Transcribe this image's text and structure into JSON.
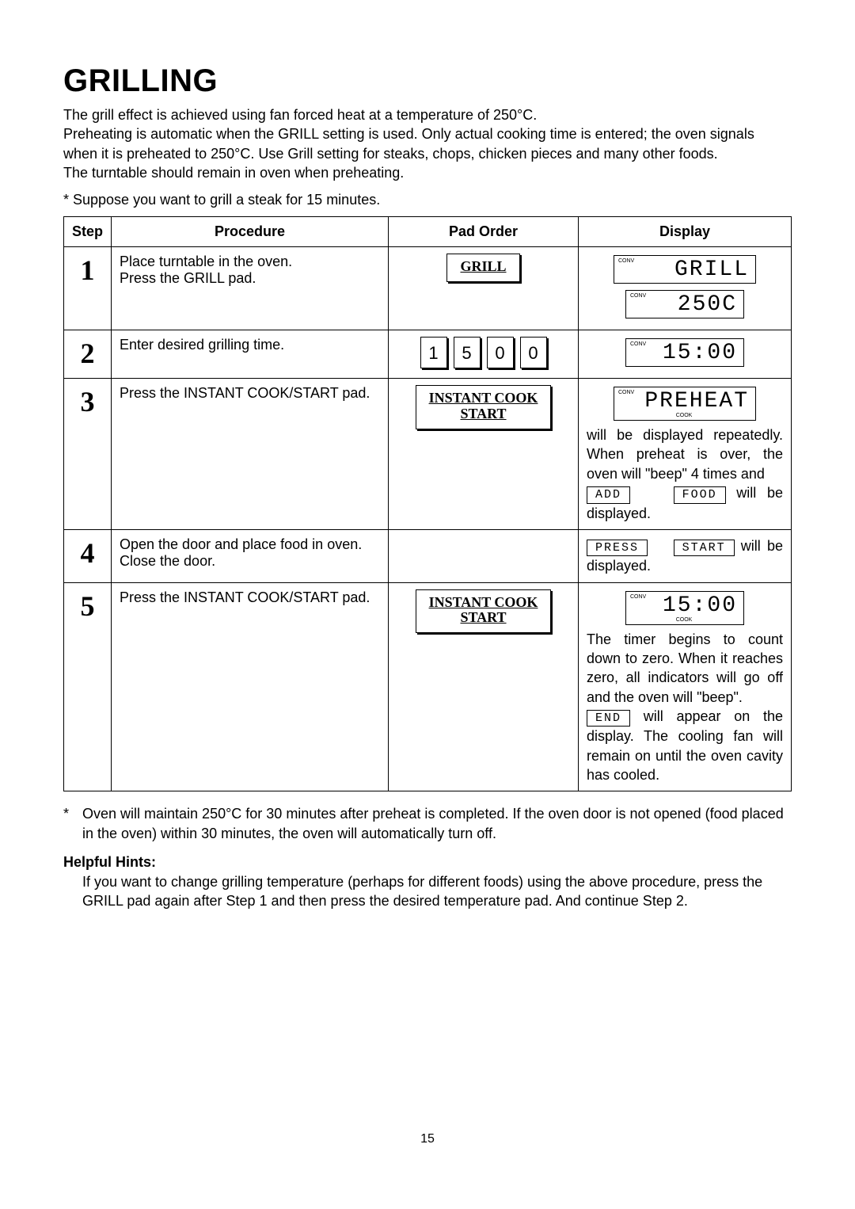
{
  "title": "GRILLING",
  "intro": "The grill effect is achieved using fan forced heat at a temperature of 250°C.\nPreheating is automatic when the GRILL setting is used. Only actual cooking time is entered; the oven signals when it is preheated to 250°C. Use Grill setting for steaks, chops, chicken pieces and many other foods.\nThe turntable should remain in oven when preheating.",
  "assume": "*  Suppose you want to grill a steak for 15 minutes.",
  "headers": {
    "step": "Step",
    "procedure": "Procedure",
    "pad": "Pad Order",
    "display": "Display"
  },
  "labels": {
    "conv": "CONV",
    "cook": "COOK"
  },
  "pads": {
    "grill": "GRILL",
    "instant1": "INSTANT COOK",
    "instant2": "START"
  },
  "digits": [
    "1",
    "5",
    "0",
    "0"
  ],
  "lcd": {
    "grill": "GRILL",
    "temp": "250C",
    "time": "15:00",
    "preheat": "PREHEAT",
    "add": "ADD",
    "food": "FOOD",
    "press": "PRESS",
    "start": "START",
    "end": "END"
  },
  "steps": {
    "s1": {
      "n": "1",
      "proc": "Place turntable in the oven.\nPress the GRILL pad."
    },
    "s2": {
      "n": "2",
      "proc": "Enter desired grilling time."
    },
    "s3": {
      "n": "3",
      "proc": "Press the INSTANT COOK/START pad.",
      "text_a": "will be displayed repeatedly. When preheat is over, the oven will \"beep\" 4 times and",
      "text_b": "will be displayed."
    },
    "s4": {
      "n": "4",
      "proc": "Open the door and place food in oven. Close the door.",
      "text": "will be displayed."
    },
    "s5": {
      "n": "5",
      "proc": "Press the INSTANT COOK/START pad.",
      "text_a": "The timer begins to count down to zero. When it reaches zero, all indicators will go off and the oven will \"beep\".",
      "text_b": "will appear on the display. The cooling fan will remain on until the oven cavity has cooled."
    }
  },
  "footnote": "Oven will maintain 250°C for 30 minutes after preheat is completed. If the oven door is not opened (food placed in the oven) within 30 minutes, the oven will automatically turn off.",
  "hints_h": "Helpful Hints:",
  "hints": "If you want to change grilling temperature (perhaps for different foods) using the above procedure, press the GRILL pad again after Step 1 and then press the desired temperature pad. And continue Step 2.",
  "pagenum": "15"
}
